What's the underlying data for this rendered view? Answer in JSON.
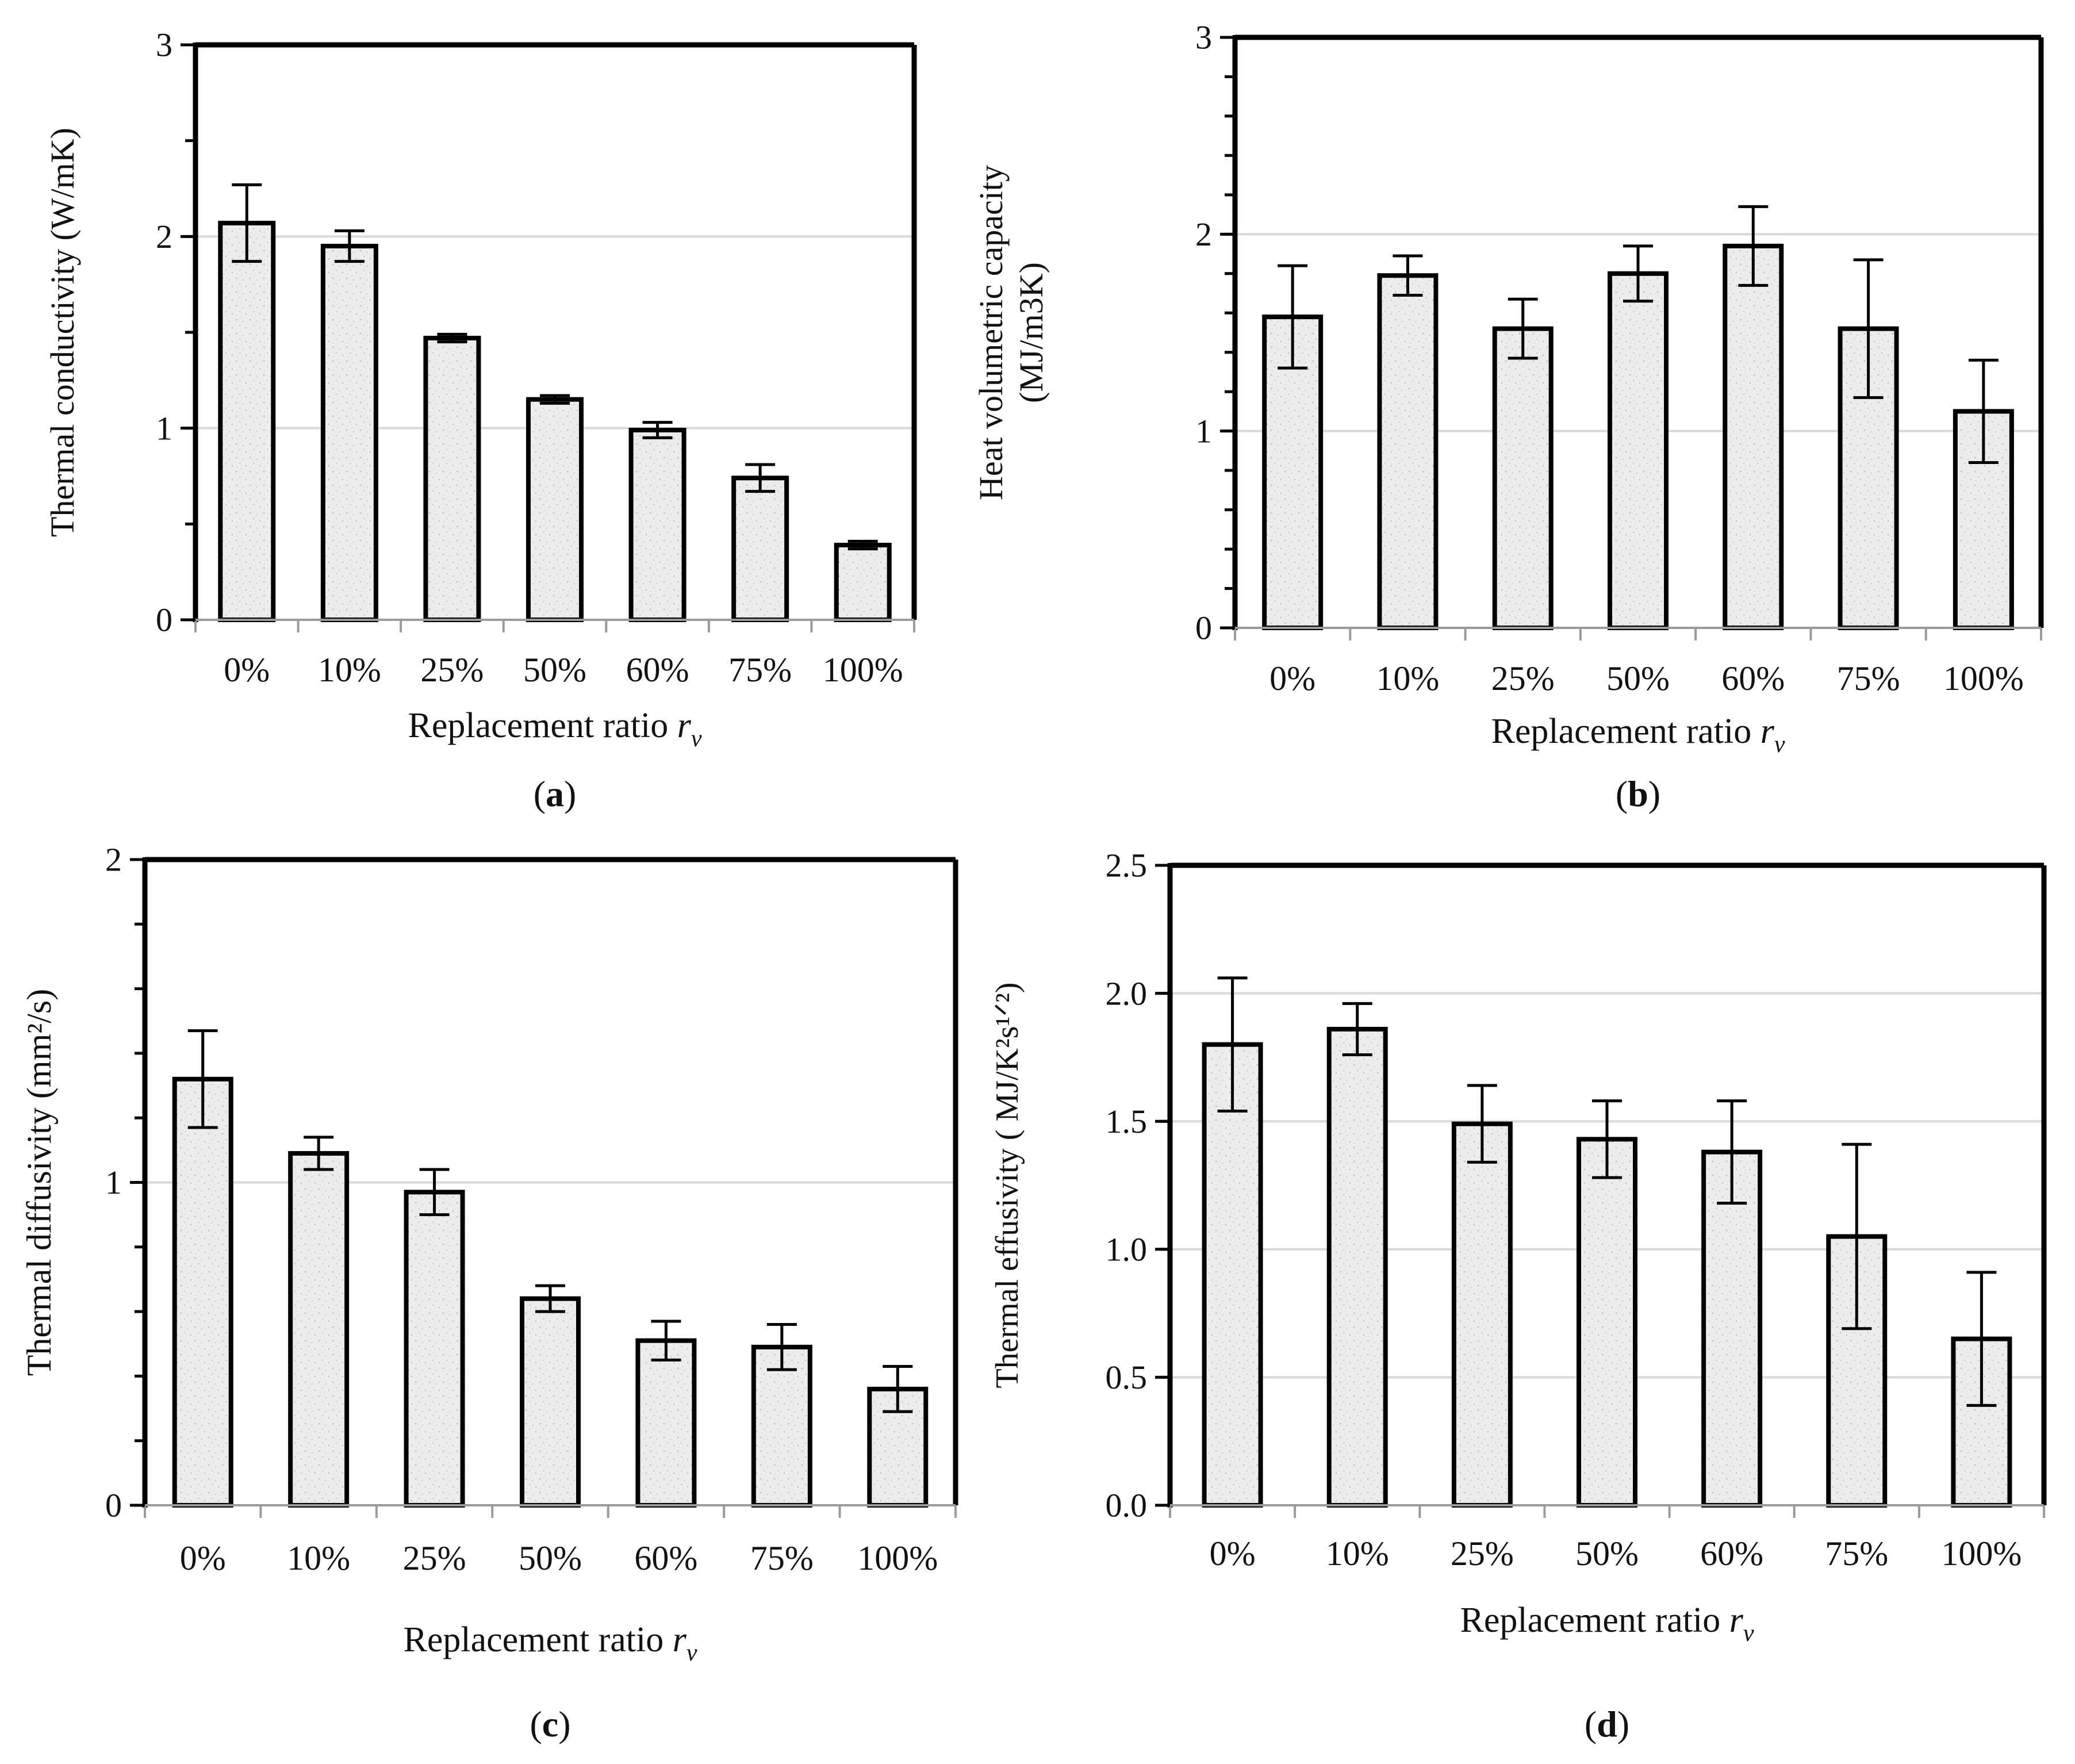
{
  "figure": {
    "colors": {
      "bar_fill": "#ececec",
      "bar_stroke": "#000000",
      "gridline": "#d9d9d9",
      "axis": "#000000",
      "text": "#111111"
    }
  },
  "chart_data": [
    {
      "id": "a",
      "panel_label": "a",
      "type": "bar",
      "title": "",
      "categories": [
        "0%",
        "10%",
        "25%",
        "50%",
        "60%",
        "75%",
        "100%"
      ],
      "values": [
        2.07,
        1.95,
        1.47,
        1.15,
        0.99,
        0.74,
        0.39
      ],
      "errors": [
        0.2,
        0.08,
        0.02,
        0.02,
        0.04,
        0.07,
        0.02
      ],
      "ylabel": "Thermal conductivity (W/mK)",
      "ylabel_lines": [
        "Thermal conductivity (W/mK)"
      ],
      "xlabel_text": "Replacement ratio ",
      "xlabel_var": "r",
      "xlabel_sub": "v",
      "ylim": [
        0,
        3
      ],
      "yticks": [
        0,
        1,
        2,
        3
      ],
      "ytick_labels": [
        "0",
        "1",
        "2",
        "3"
      ],
      "gridlines": [
        1,
        2
      ],
      "minor_tick_step": 0.5,
      "grid": true
    },
    {
      "id": "b",
      "panel_label": "b",
      "type": "bar",
      "title": "",
      "categories": [
        "0%",
        "10%",
        "25%",
        "50%",
        "60%",
        "75%",
        "100%"
      ],
      "values": [
        1.58,
        1.79,
        1.52,
        1.8,
        1.94,
        1.52,
        1.1
      ],
      "errors": [
        0.26,
        0.1,
        0.15,
        0.14,
        0.2,
        0.35,
        0.26
      ],
      "ylabel": "Heat volumetric capacity (MJ/m3K)",
      "ylabel_lines": [
        "Heat volumetric capacity",
        "(MJ/m3K)"
      ],
      "xlabel_text": "Replacement ratio ",
      "xlabel_var": "r",
      "xlabel_sub": "v",
      "ylim": [
        0,
        3
      ],
      "yticks": [
        0,
        1,
        2,
        3
      ],
      "ytick_labels": [
        "0",
        "1",
        "2",
        "3"
      ],
      "gridlines": [
        1,
        2
      ],
      "minor_tick_step": 0.2,
      "grid": true
    },
    {
      "id": "c",
      "panel_label": "c",
      "type": "bar",
      "title": "",
      "categories": [
        "0%",
        "10%",
        "25%",
        "50%",
        "60%",
        "75%",
        "100%"
      ],
      "values": [
        1.32,
        1.09,
        0.97,
        0.64,
        0.51,
        0.49,
        0.36
      ],
      "errors": [
        0.15,
        0.05,
        0.07,
        0.04,
        0.06,
        0.07,
        0.07
      ],
      "ylabel": "Thermal diffusivity (mm²/s)",
      "ylabel_lines": [
        "Thermal diffusivity (mm²/s)"
      ],
      "xlabel_text": "Replacement ratio ",
      "xlabel_var": "r",
      "xlabel_sub": "v",
      "ylim": [
        0,
        2
      ],
      "yticks": [
        0,
        1,
        2
      ],
      "ytick_labels": [
        "0",
        "1",
        "2"
      ],
      "gridlines": [
        1
      ],
      "minor_tick_step": 0.2,
      "grid": true
    },
    {
      "id": "d",
      "panel_label": "d",
      "type": "bar",
      "title": "",
      "categories": [
        "0%",
        "10%",
        "25%",
        "50%",
        "60%",
        "75%",
        "100%"
      ],
      "values": [
        1.8,
        1.86,
        1.49,
        1.43,
        1.38,
        1.05,
        0.65
      ],
      "errors": [
        0.26,
        0.1,
        0.15,
        0.15,
        0.2,
        0.36,
        0.26
      ],
      "ylabel": "Thermal effusivity ( MJ/K²s¹ᐟ²)",
      "ylabel_lines": [
        "Thermal effusivity ( MJ/K²s¹ᐟ²)"
      ],
      "xlabel_text": "Replacement ratio ",
      "xlabel_var": "r",
      "xlabel_sub": "v",
      "ylim": [
        0,
        2.5
      ],
      "yticks": [
        0,
        0.5,
        1,
        1.5,
        2,
        2.5
      ],
      "ytick_labels": [
        "0.0",
        "0.5",
        "1.0",
        "1.5",
        "2.0",
        "2.5"
      ],
      "gridlines": [
        0.5,
        1,
        1.5,
        2
      ],
      "minor_tick_step": 0.5,
      "grid": true
    }
  ]
}
